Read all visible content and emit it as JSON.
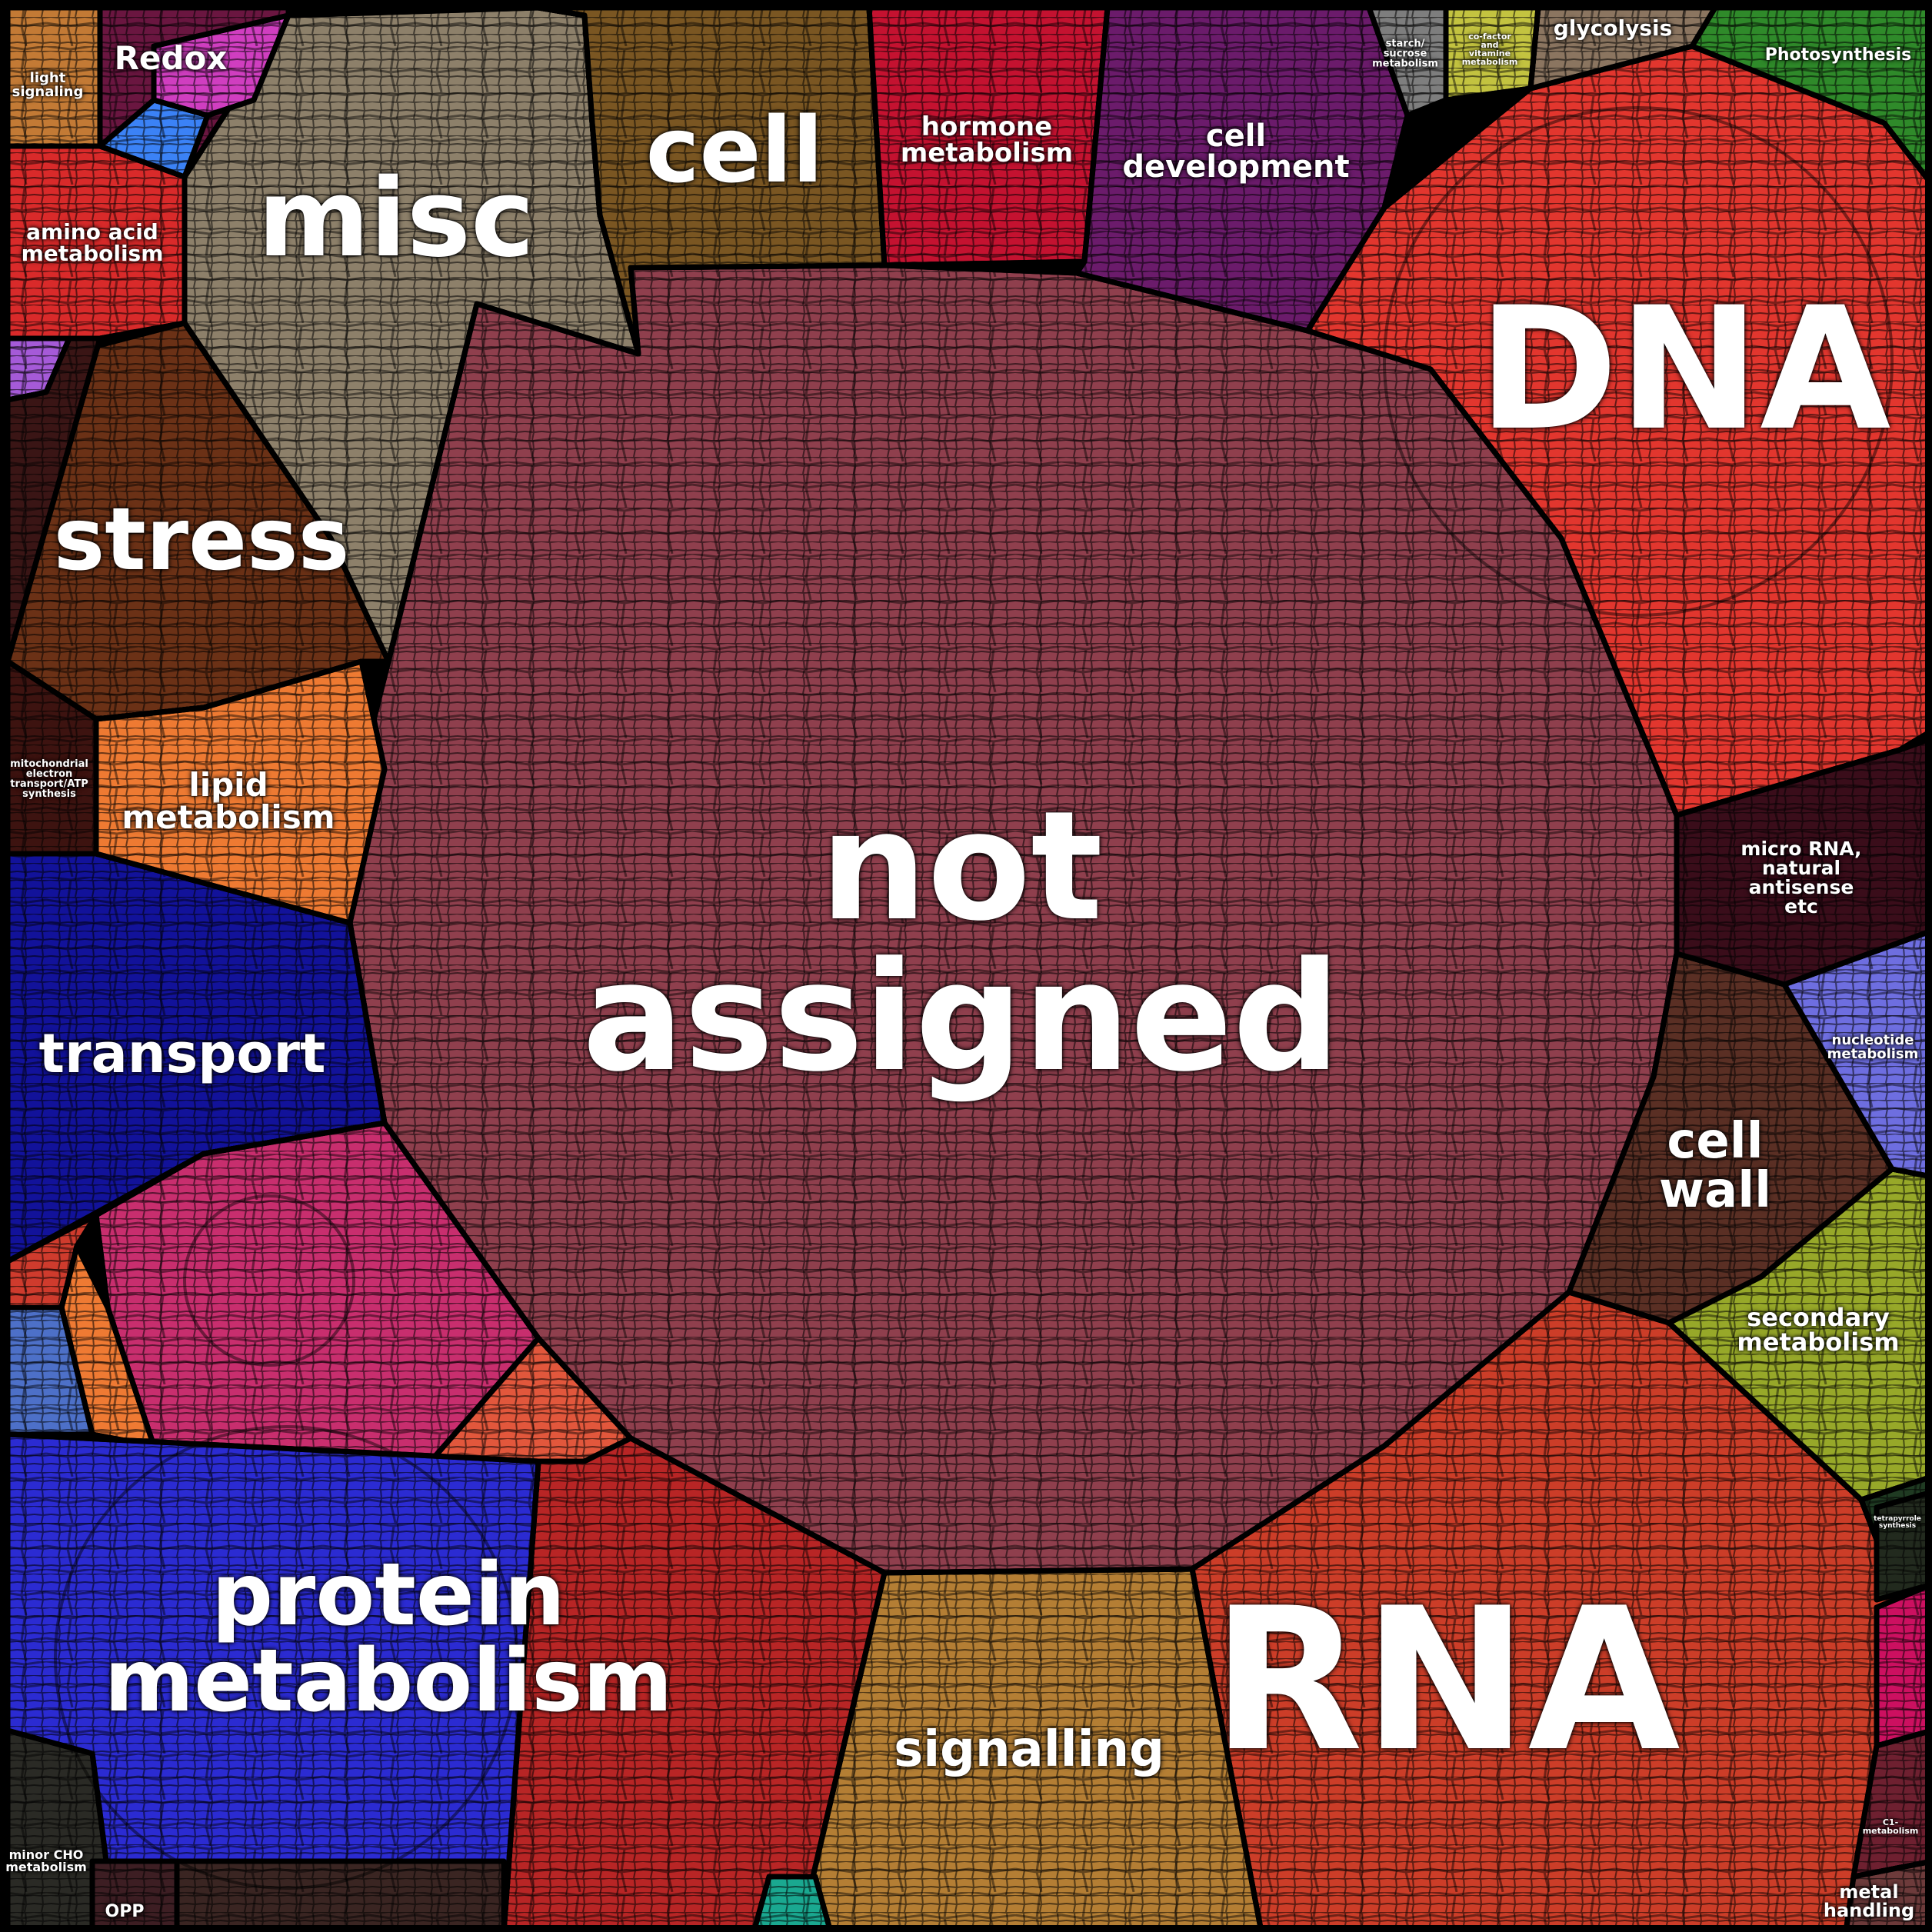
{
  "diagram": {
    "type": "voronoi-treemap",
    "categories": [
      {
        "key": "not-assigned",
        "label": "not\nassigned",
        "color": "#8f3f4d"
      },
      {
        "key": "dna",
        "label": "DNA",
        "color": "#e2362e"
      },
      {
        "key": "rna",
        "label": "RNA",
        "color": "#cc3d28"
      },
      {
        "key": "protein-metabolism",
        "label": "protein\nmetabolism",
        "color": "#2b2bd2"
      },
      {
        "key": "misc",
        "label": "misc",
        "color": "#8d806a"
      },
      {
        "key": "cell",
        "label": "cell",
        "color": "#7a5622"
      },
      {
        "key": "stress",
        "label": "stress",
        "color": "#6b3116"
      },
      {
        "key": "transport",
        "label": "transport",
        "color": "#12129a"
      },
      {
        "key": "signalling",
        "label": "signalling",
        "color": "#b47e34"
      },
      {
        "key": "hormone-metabolism",
        "label": "hormone\nmetabolism",
        "color": "#c41230"
      },
      {
        "key": "cell-development",
        "label": "cell\ndevelopment",
        "color": "#6b1b6b"
      },
      {
        "key": "lipid-metabolism",
        "label": "lipid\nmetabolism",
        "color": "#ee7a32"
      },
      {
        "key": "amino-acid-metabolism",
        "label": "amino acid\nmetabolism",
        "color": "#d92a2a"
      },
      {
        "key": "redox",
        "label": "Redox",
        "color": "#6a1640"
      },
      {
        "key": "light-signaling",
        "label": "light\nsignaling",
        "color": "#c37a35"
      },
      {
        "key": "cell-wall",
        "label": "cell\nwall",
        "color": "#5a2f24"
      },
      {
        "key": "secondary-metabolism",
        "label": "secondary\nmetabolism",
        "color": "#97a829"
      },
      {
        "key": "nucleotide-metabolism",
        "label": "nucleotide\nmetabolism",
        "color": "#6e6ee0"
      },
      {
        "key": "micro-rna",
        "label": "micro RNA,\nnatural antisense\netc",
        "color": "#3a0d1a"
      },
      {
        "key": "photosynthesis",
        "label": "Photosynthesis",
        "color": "#2f8a2a"
      },
      {
        "key": "glycolysis",
        "label": "glycolysis",
        "color": "#8b7560"
      },
      {
        "key": "cofactor-vitamine",
        "label": "co-factor\nand\nvitamine\nmetabolism",
        "color": "#c3c340"
      },
      {
        "key": "starch-sucrose",
        "label": "starch/\nsucrose\nmetabolism",
        "color": "#7e7e7e"
      },
      {
        "key": "mitochondrial-electron",
        "label": "mitochondrial\nelectron\ntransport/ATP\nsynthesis",
        "color": "#3d1310"
      },
      {
        "key": "tetrapyrrole",
        "label": "tetrapyrrole\nsynthesis",
        "color": "#1f3a22"
      },
      {
        "key": "c1-metabolism",
        "label": "C1-\nmetabolism",
        "color": "#6e2030"
      },
      {
        "key": "metal-handling",
        "label": "metal\nhandling",
        "color": "#6d3b3b"
      },
      {
        "key": "minor-cho",
        "label": "minor CHO\nmetabolism",
        "color": "#2a2a25"
      },
      {
        "key": "opp",
        "label": "OPP",
        "color": "#3d1e23"
      },
      {
        "key": "pink-region",
        "label": "",
        "color": "#c82e6e"
      },
      {
        "key": "orange-region",
        "label": "",
        "color": "#e2573c"
      },
      {
        "key": "red-region",
        "label": "",
        "color": "#b82525"
      },
      {
        "key": "small-orange",
        "label": "",
        "color": "#ef7a33"
      },
      {
        "key": "small-blue",
        "label": "",
        "color": "#4d70c8"
      },
      {
        "key": "small-red",
        "label": "",
        "color": "#cf3b2d"
      },
      {
        "key": "blue-accent",
        "label": "",
        "color": "#3b82f6"
      },
      {
        "key": "magenta-accent",
        "label": "",
        "color": "#d03ec0"
      },
      {
        "key": "purple-accent",
        "label": "",
        "color": "#a55ad8"
      },
      {
        "key": "teal-accent",
        "label": "",
        "color": "#1aa890"
      },
      {
        "key": "magenta-br",
        "label": "",
        "color": "#cc1060"
      },
      {
        "key": "dark-br",
        "label": "",
        "color": "#222a1e"
      },
      {
        "key": "dark-bl2",
        "label": "",
        "color": "#1f1f40"
      },
      {
        "key": "dark-bottom",
        "label": "",
        "color": "#3a2522"
      },
      {
        "key": "dark-left",
        "label": "",
        "color": "#3a1515"
      }
    ]
  }
}
